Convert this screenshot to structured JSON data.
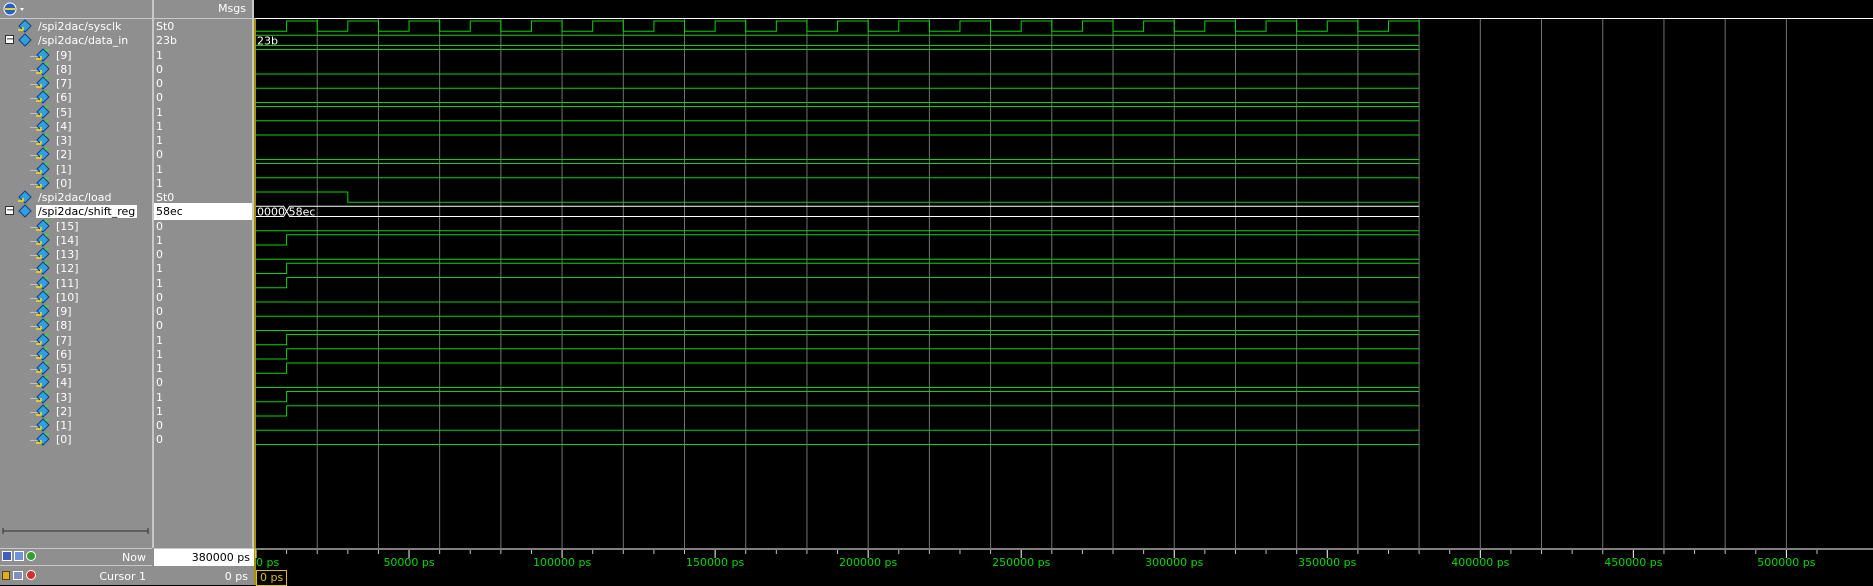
{
  "header": {
    "msgs_label": "Msgs"
  },
  "signals": [
    {
      "name": "/spi2dac/sysclk",
      "value": "St0",
      "level": 0,
      "kind": "clock",
      "expander": ""
    },
    {
      "name": "/spi2dac/data_in",
      "value": "23b",
      "level": 0,
      "kind": "bus",
      "expander": "−",
      "bus_text": [
        "23b"
      ]
    },
    {
      "name": "[9]",
      "value": "1",
      "level": 1,
      "kind": "bit",
      "bit": 1
    },
    {
      "name": "[8]",
      "value": "0",
      "level": 1,
      "kind": "bit",
      "bit": 0
    },
    {
      "name": "[7]",
      "value": "0",
      "level": 1,
      "kind": "bit",
      "bit": 0
    },
    {
      "name": "[6]",
      "value": "0",
      "level": 1,
      "kind": "bit",
      "bit": 0
    },
    {
      "name": "[5]",
      "value": "1",
      "level": 1,
      "kind": "bit",
      "bit": 1
    },
    {
      "name": "[4]",
      "value": "1",
      "level": 1,
      "kind": "bit",
      "bit": 1
    },
    {
      "name": "[3]",
      "value": "1",
      "level": 1,
      "kind": "bit",
      "bit": 1
    },
    {
      "name": "[2]",
      "value": "0",
      "level": 1,
      "kind": "bit",
      "bit": 0
    },
    {
      "name": "[1]",
      "value": "1",
      "level": 1,
      "kind": "bit",
      "bit": 1
    },
    {
      "name": "[0]",
      "value": "1",
      "level": 1,
      "kind": "bit",
      "bit": 1
    },
    {
      "name": "/spi2dac/load",
      "value": "St0",
      "level": 0,
      "kind": "pulse",
      "expander": ""
    },
    {
      "name": "/spi2dac/shift_reg",
      "value": "58ec",
      "level": 0,
      "kind": "bus",
      "expander": "−",
      "selected": true,
      "bus_text": [
        "0000",
        "58ec"
      ]
    },
    {
      "name": "[15]",
      "value": "0",
      "level": 1,
      "kind": "bit",
      "bit": 0,
      "rise": false
    },
    {
      "name": "[14]",
      "value": "1",
      "level": 1,
      "kind": "bit",
      "bit": 1,
      "rise": true
    },
    {
      "name": "[13]",
      "value": "0",
      "level": 1,
      "kind": "bit",
      "bit": 0,
      "rise": false
    },
    {
      "name": "[12]",
      "value": "1",
      "level": 1,
      "kind": "bit",
      "bit": 1,
      "rise": true
    },
    {
      "name": "[11]",
      "value": "1",
      "level": 1,
      "kind": "bit",
      "bit": 1,
      "rise": true
    },
    {
      "name": "[10]",
      "value": "0",
      "level": 1,
      "kind": "bit",
      "bit": 0,
      "rise": false
    },
    {
      "name": "[9]",
      "value": "0",
      "level": 1,
      "kind": "bit",
      "bit": 0,
      "rise": false
    },
    {
      "name": "[8]",
      "value": "0",
      "level": 1,
      "kind": "bit",
      "bit": 0,
      "rise": false
    },
    {
      "name": "[7]",
      "value": "1",
      "level": 1,
      "kind": "bit",
      "bit": 1,
      "rise": true
    },
    {
      "name": "[6]",
      "value": "1",
      "level": 1,
      "kind": "bit",
      "bit": 1,
      "rise": true
    },
    {
      "name": "[5]",
      "value": "1",
      "level": 1,
      "kind": "bit",
      "bit": 1,
      "rise": true
    },
    {
      "name": "[4]",
      "value": "0",
      "level": 1,
      "kind": "bit",
      "bit": 0,
      "rise": false
    },
    {
      "name": "[3]",
      "value": "1",
      "level": 1,
      "kind": "bit",
      "bit": 1,
      "rise": true
    },
    {
      "name": "[2]",
      "value": "1",
      "level": 1,
      "kind": "bit",
      "bit": 1,
      "rise": true
    },
    {
      "name": "[1]",
      "value": "0",
      "level": 1,
      "kind": "bit",
      "bit": 0,
      "rise": false
    },
    {
      "name": "[0]",
      "value": "0",
      "level": 1,
      "kind": "bit",
      "bit": 0,
      "rise": false
    }
  ],
  "timeline": {
    "now_label": "Now",
    "now_value": "380000 ps",
    "cursor_label": "Cursor 1",
    "cursor_value": "0 ps",
    "cursor_box": "0 ps",
    "sim_end_ps": 380000,
    "view_end_ps": 510000,
    "clock_period_ps": 20000,
    "load_pulse_end_ps": 30000,
    "shift_change_ps": 10000,
    "ticks": [
      "0 ps",
      "50000 ps",
      "100000 ps",
      "150000 ps",
      "200000 ps",
      "250000 ps",
      "300000 ps",
      "350000 ps",
      "400000 ps",
      "450000 ps",
      "500000 ps"
    ],
    "tick_values_ps": [
      0,
      50000,
      100000,
      150000,
      200000,
      250000,
      300000,
      350000,
      400000,
      450000,
      500000
    ]
  },
  "colors": {
    "wave": "#00d800",
    "grid": "#808080",
    "bus_outline": "#ffffff",
    "cursor": "#e0c000",
    "panel": "#8f8f8f"
  },
  "icons": {
    "header": "wave-window-icon",
    "signal": "signal-diamond-icon",
    "bottom": [
      "lock-icon",
      "cursor-icon",
      "delete-icon"
    ]
  }
}
